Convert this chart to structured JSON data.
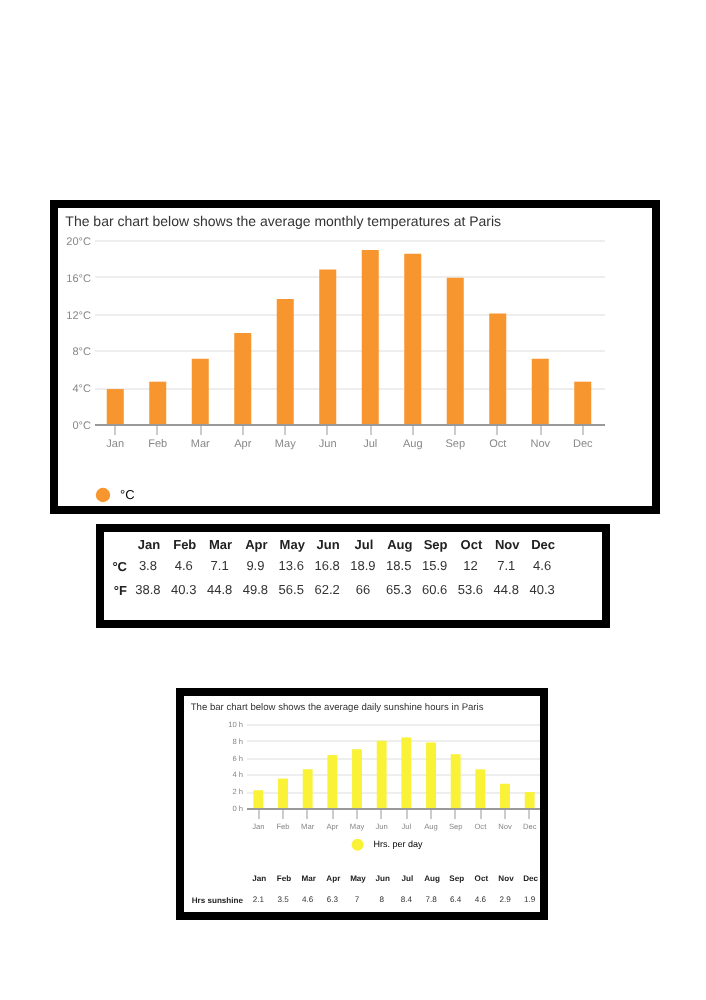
{
  "chart_data": [
    {
      "type": "bar",
      "title": "The bar chart below shows the average monthly temperatures at Paris",
      "categories": [
        "Jan",
        "Feb",
        "Mar",
        "Apr",
        "May",
        "Jun",
        "Jul",
        "Aug",
        "Sep",
        "Oct",
        "Nov",
        "Dec"
      ],
      "series": [
        {
          "name": "°C",
          "color": "#f7952e",
          "values": [
            3.8,
            4.6,
            7.1,
            9.9,
            13.6,
            16.8,
            18.9,
            18.5,
            15.9,
            12,
            7.1,
            4.6
          ]
        }
      ],
      "ylim": [
        0,
        20
      ],
      "yticks": [
        {
          "value": 0,
          "label": "0°C"
        },
        {
          "value": 4,
          "label": "4°C"
        },
        {
          "value": 8,
          "label": "8°C"
        },
        {
          "value": 12,
          "label": "12°C"
        },
        {
          "value": 16,
          "label": "16°C"
        },
        {
          "value": 20,
          "label": "20°C"
        }
      ],
      "grid": "y",
      "legend": "bottom"
    },
    {
      "type": "other",
      "categories": [
        "Jan",
        "Feb",
        "Mar",
        "Apr",
        "May",
        "Jun",
        "Jul",
        "Aug",
        "Sep",
        "Oct",
        "Nov",
        "Dec"
      ],
      "data_labels": true,
      "series": [
        {
          "name": "°C",
          "values": [
            3.8,
            4.6,
            7.1,
            9.9,
            13.6,
            16.8,
            18.9,
            18.5,
            15.9,
            12,
            7.1,
            4.6
          ]
        },
        {
          "name": "°F",
          "values": [
            38.8,
            40.3,
            44.8,
            49.8,
            56.5,
            62.2,
            66,
            65.3,
            60.6,
            53.6,
            44.8,
            40.3
          ]
        }
      ]
    },
    {
      "type": "bar",
      "title": "The bar chart below shows the average daily sunshine hours in Paris",
      "categories": [
        "Jan",
        "Feb",
        "Mar",
        "Apr",
        "May",
        "Jun",
        "Jul",
        "Aug",
        "Sep",
        "Oct",
        "Nov",
        "Dec"
      ],
      "series": [
        {
          "name": "Hrs. per day",
          "color": "#f9f236",
          "values": [
            2.1,
            3.5,
            4.6,
            6.3,
            7,
            8,
            8.4,
            7.8,
            6.4,
            4.6,
            2.9,
            1.9
          ]
        }
      ],
      "ylim": [
        0,
        10
      ],
      "yticks": [
        {
          "value": 0,
          "label": "0 h"
        },
        {
          "value": 2,
          "label": "2 h"
        },
        {
          "value": 4,
          "label": "4 h"
        },
        {
          "value": 6,
          "label": "6 h"
        },
        {
          "value": 8,
          "label": "8 h"
        },
        {
          "value": 10,
          "label": "10 h"
        }
      ],
      "grid": "y",
      "legend": "bottom",
      "data_labels": true,
      "annotations": [
        "Hrs sunshine"
      ]
    }
  ]
}
